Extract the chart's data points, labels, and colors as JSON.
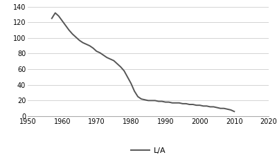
{
  "title": "",
  "xlabel": "L/A",
  "ylabel": "",
  "xlim": [
    1950,
    2020
  ],
  "ylim": [
    0,
    140
  ],
  "xticks": [
    1950,
    1960,
    1970,
    1980,
    1990,
    2000,
    2010,
    2020
  ],
  "yticks": [
    0,
    20,
    40,
    60,
    80,
    100,
    120,
    140
  ],
  "line_color": "#555555",
  "line_width": 1.4,
  "legend_label": "L/A",
  "background_color": "#ffffff",
  "grid_color": "#cccccc",
  "years": [
    1957,
    1958,
    1959,
    1960,
    1961,
    1962,
    1963,
    1964,
    1965,
    1966,
    1967,
    1968,
    1969,
    1970,
    1971,
    1972,
    1973,
    1974,
    1975,
    1976,
    1977,
    1978,
    1979,
    1980,
    1981,
    1982,
    1983,
    1984,
    1985,
    1986,
    1987,
    1988,
    1989,
    1990,
    1991,
    1992,
    1993,
    1994,
    1995,
    1996,
    1997,
    1998,
    1999,
    2000,
    2001,
    2002,
    2003,
    2004,
    2005,
    2006,
    2007,
    2008,
    2009,
    2010
  ],
  "values": [
    125,
    132,
    128,
    122,
    116,
    110,
    105,
    101,
    97,
    94,
    92,
    90,
    87,
    83,
    81,
    78,
    75,
    73,
    71,
    67,
    63,
    58,
    50,
    42,
    32,
    25,
    22,
    21,
    20,
    20,
    20,
    19,
    19,
    18,
    18,
    17,
    17,
    17,
    16,
    16,
    15,
    15,
    14,
    14,
    13,
    13,
    12,
    12,
    11,
    10,
    10,
    9,
    8,
    6
  ]
}
